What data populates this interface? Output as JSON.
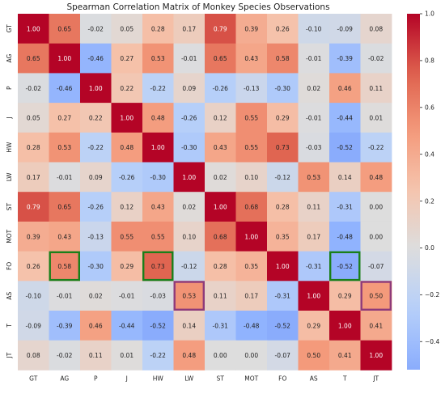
{
  "chart_data": {
    "type": "heatmap",
    "title": "Spearman Correlation Matrix of Monkey Species Observations",
    "labels": [
      "GT",
      "AG",
      "P",
      "J",
      "HW",
      "LW",
      "ST",
      "MOT",
      "FO",
      "AS",
      "T",
      "JT"
    ],
    "values": [
      [
        1.0,
        0.65,
        -0.02,
        0.05,
        0.28,
        0.17,
        0.79,
        0.39,
        0.26,
        -0.1,
        -0.09,
        0.08
      ],
      [
        0.65,
        1.0,
        -0.46,
        0.27,
        0.53,
        -0.01,
        0.65,
        0.43,
        0.58,
        -0.01,
        -0.39,
        -0.02
      ],
      [
        -0.02,
        -0.46,
        1.0,
        0.22,
        -0.22,
        0.09,
        -0.26,
        -0.13,
        -0.3,
        0.02,
        0.46,
        0.11
      ],
      [
        0.05,
        0.27,
        0.22,
        1.0,
        0.48,
        -0.26,
        0.12,
        0.55,
        0.29,
        -0.01,
        -0.44,
        0.01
      ],
      [
        0.28,
        0.53,
        -0.22,
        0.48,
        1.0,
        -0.3,
        0.43,
        0.55,
        0.73,
        -0.03,
        -0.52,
        -0.22
      ],
      [
        0.17,
        -0.01,
        0.09,
        -0.26,
        -0.3,
        1.0,
        0.02,
        0.1,
        -0.12,
        0.53,
        0.14,
        0.48
      ],
      [
        0.79,
        0.65,
        -0.26,
        0.12,
        0.43,
        0.02,
        1.0,
        0.68,
        0.28,
        0.11,
        -0.31,
        0.0
      ],
      [
        0.39,
        0.43,
        -0.13,
        0.55,
        0.55,
        0.1,
        0.68,
        1.0,
        0.35,
        0.17,
        -0.48,
        0.0
      ],
      [
        0.26,
        0.58,
        -0.3,
        0.29,
        0.73,
        -0.12,
        0.28,
        0.35,
        1.0,
        -0.31,
        -0.52,
        -0.07
      ],
      [
        -0.1,
        -0.01,
        0.02,
        -0.01,
        -0.03,
        0.53,
        0.11,
        0.17,
        -0.31,
        1.0,
        0.29,
        0.5
      ],
      [
        -0.09,
        -0.39,
        0.46,
        -0.44,
        -0.52,
        0.14,
        -0.31,
        -0.48,
        -0.52,
        0.29,
        1.0,
        0.41
      ],
      [
        0.08,
        -0.02,
        0.11,
        0.01,
        -0.22,
        0.48,
        0.0,
        0.0,
        -0.07,
        0.5,
        0.41,
        1.0
      ]
    ],
    "vmin": -0.52,
    "vmax": 1.0,
    "center": 0,
    "colormap": "coolwarm",
    "colorbar_ticks": [
      -0.4,
      -0.2,
      0.0,
      0.2,
      0.4,
      0.6,
      0.8,
      1.0
    ],
    "highlighted_cells": [
      {
        "row": 8,
        "col": 1,
        "color": "#1a7f1a"
      },
      {
        "row": 8,
        "col": 4,
        "color": "#1a7f1a"
      },
      {
        "row": 8,
        "col": 10,
        "color": "#1a7f1a"
      },
      {
        "row": 9,
        "col": 5,
        "color": "#8e3a7a"
      },
      {
        "row": 9,
        "col": 11,
        "color": "#8e3a7a"
      }
    ]
  }
}
